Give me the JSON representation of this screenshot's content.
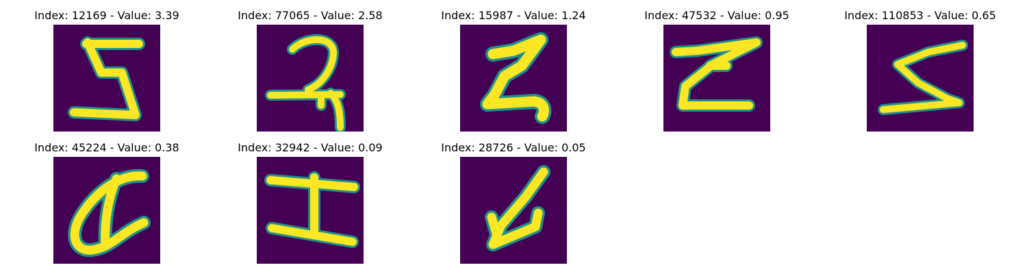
{
  "panels": [
    {
      "title": "Index: 12169 - Value: 3.39",
      "glyph_icon": "handwritten-glyph-icon"
    },
    {
      "title": "Index: 77065 - Value: 2.58",
      "glyph_icon": "handwritten-glyph-icon"
    },
    {
      "title": "Index: 15987 - Value: 1.24",
      "glyph_icon": "handwritten-glyph-icon"
    },
    {
      "title": "Index: 47532 - Value: 0.95",
      "glyph_icon": "handwritten-glyph-icon"
    },
    {
      "title": "Index: 110853 - Value: 0.65",
      "glyph_icon": "handwritten-glyph-icon"
    },
    {
      "title": "Index: 45224 - Value: 0.38",
      "glyph_icon": "handwritten-glyph-icon"
    },
    {
      "title": "Index: 32942 - Value: 0.09",
      "glyph_icon": "handwritten-glyph-icon"
    },
    {
      "title": "Index: 28726 - Value: 0.05",
      "glyph_icon": "handwritten-glyph-icon"
    }
  ],
  "colors": {
    "background": "#440154",
    "stroke": "#fde725",
    "stroke_edge": "#21918c"
  }
}
